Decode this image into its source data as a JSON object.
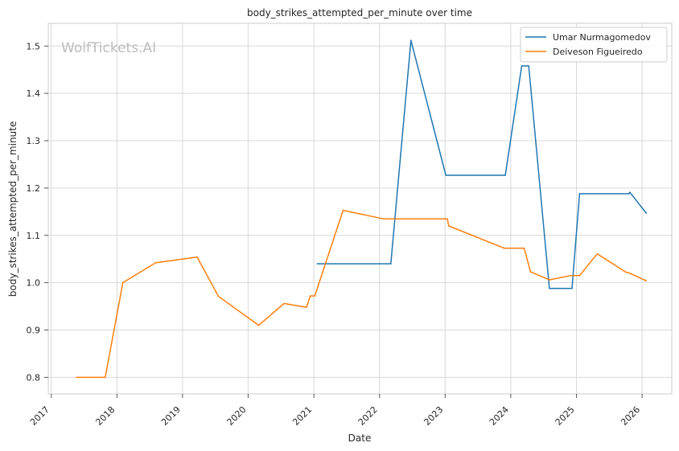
{
  "chart_data": {
    "type": "line",
    "title": "body_strikes_attempted_per_minute over time",
    "xlabel": "Date",
    "ylabel": "body_strikes_attempted_per_minute",
    "watermark": "WolfTickets.AI",
    "x_ticks": [
      "2017",
      "2018",
      "2019",
      "2020",
      "2021",
      "2022",
      "2023",
      "2024",
      "2025",
      "2026"
    ],
    "y_ticks": [
      "0.8",
      "0.9",
      "1.0",
      "1.1",
      "1.2",
      "1.3",
      "1.4",
      "1.5"
    ],
    "ylim": [
      0.765,
      1.548
    ],
    "xlim": [
      "2016-12-15",
      "2026-06-15"
    ],
    "grid": true,
    "legend_position": "top-right",
    "series": [
      {
        "name": "Umar Nurmagomedov",
        "color": "#1f77b4",
        "points": [
          [
            "2021-01-20",
            1.04
          ],
          [
            "2022-03-05",
            1.04
          ],
          [
            "2022-06-25",
            1.512
          ],
          [
            "2023-01-05",
            1.227
          ],
          [
            "2023-12-02",
            1.227
          ],
          [
            "2024-03-02",
            1.458
          ],
          [
            "2024-04-10",
            1.458
          ],
          [
            "2024-08-03",
            0.988
          ],
          [
            "2024-12-07",
            0.988
          ],
          [
            "2025-01-18",
            1.188
          ],
          [
            "2025-10-20",
            1.188
          ],
          [
            "2025-10-25",
            1.191
          ],
          [
            "2026-01-24",
            1.147
          ]
        ]
      },
      {
        "name": "Deiveson Figueiredo",
        "color": "#ff7f0e",
        "points": [
          [
            "2017-05-20",
            0.8
          ],
          [
            "2017-10-28",
            0.8
          ],
          [
            "2018-02-03",
            1.0
          ],
          [
            "2018-08-04",
            1.042
          ],
          [
            "2019-03-23",
            1.054
          ],
          [
            "2019-07-20",
            0.971
          ],
          [
            "2020-02-29",
            0.91
          ],
          [
            "2020-07-19",
            0.956
          ],
          [
            "2020-11-21",
            0.948
          ],
          [
            "2020-12-12",
            0.972
          ],
          [
            "2021-01-06",
            0.972
          ],
          [
            "2021-06-12",
            1.153
          ],
          [
            "2022-01-22",
            1.135
          ],
          [
            "2023-01-13",
            1.135
          ],
          [
            "2023-01-21",
            1.12
          ],
          [
            "2023-11-25",
            1.073
          ],
          [
            "2024-03-16",
            1.073
          ],
          [
            "2024-04-20",
            1.023
          ],
          [
            "2024-08-03",
            1.006
          ],
          [
            "2024-11-30",
            1.015
          ],
          [
            "2025-01-18",
            1.015
          ],
          [
            "2025-04-26",
            1.061
          ],
          [
            "2025-10-04",
            1.022
          ],
          [
            "2025-10-25",
            1.02
          ],
          [
            "2026-01-24",
            1.004
          ]
        ]
      }
    ]
  }
}
